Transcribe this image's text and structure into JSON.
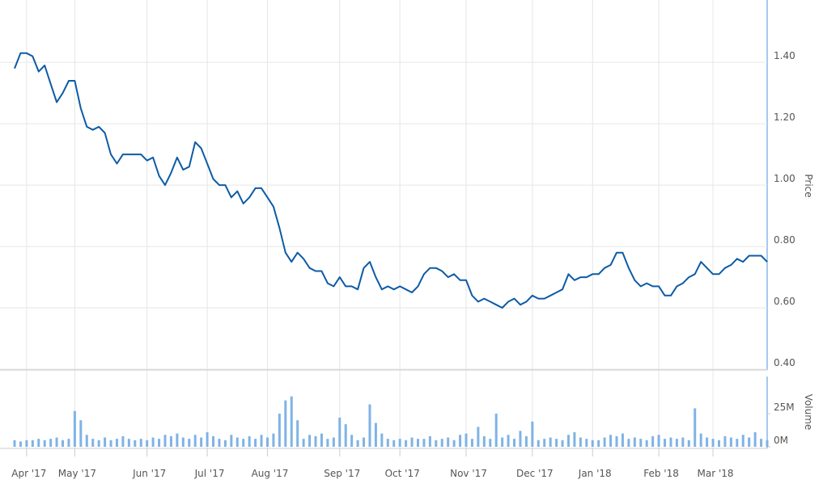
{
  "chart_data": [
    {
      "type": "line",
      "y_label": "Price",
      "color": "#0d5ba6",
      "grid": true,
      "categories": [
        null,
        null,
        "Apr '17",
        null,
        null,
        null,
        null,
        null,
        null,
        null,
        "May '17",
        null,
        null,
        null,
        null,
        null,
        null,
        null,
        null,
        null,
        null,
        null,
        "Jun '17",
        null,
        null,
        null,
        null,
        null,
        null,
        null,
        null,
        null,
        "Jul '17",
        null,
        null,
        null,
        null,
        null,
        null,
        null,
        null,
        null,
        "Aug '17",
        null,
        null,
        null,
        null,
        null,
        null,
        null,
        null,
        null,
        null,
        null,
        "Sep '17",
        null,
        null,
        null,
        null,
        null,
        null,
        null,
        null,
        null,
        "Oct '17",
        null,
        null,
        null,
        null,
        null,
        null,
        null,
        null,
        null,
        null,
        "Nov '17",
        null,
        null,
        null,
        null,
        null,
        null,
        null,
        null,
        null,
        null,
        "Dec '17",
        null,
        null,
        null,
        null,
        null,
        null,
        null,
        null,
        null,
        "Jan '18",
        null,
        null,
        null,
        null,
        null,
        null,
        null,
        null,
        null,
        null,
        "Feb '18",
        null,
        null,
        null,
        null,
        null,
        null,
        null,
        null,
        "Mar '18",
        null,
        null,
        null,
        null,
        null,
        null,
        null,
        null,
        null
      ],
      "values": [
        1.38,
        1.43,
        1.43,
        1.42,
        1.37,
        1.39,
        1.33,
        1.27,
        1.3,
        1.34,
        1.34,
        1.25,
        1.19,
        1.18,
        1.19,
        1.17,
        1.1,
        1.07,
        1.1,
        1.1,
        1.1,
        1.1,
        1.08,
        1.09,
        1.03,
        1.0,
        1.04,
        1.09,
        1.05,
        1.06,
        1.14,
        1.12,
        1.07,
        1.02,
        1.0,
        1.0,
        0.96,
        0.98,
        0.94,
        0.96,
        0.99,
        0.99,
        0.96,
        0.93,
        0.86,
        0.78,
        0.75,
        0.78,
        0.76,
        0.73,
        0.72,
        0.72,
        0.68,
        0.67,
        0.7,
        0.67,
        0.67,
        0.66,
        0.73,
        0.75,
        0.7,
        0.66,
        0.67,
        0.66,
        0.67,
        0.66,
        0.65,
        0.67,
        0.71,
        0.73,
        0.73,
        0.72,
        0.7,
        0.71,
        0.69,
        0.69,
        0.64,
        0.62,
        0.63,
        0.62,
        0.61,
        0.6,
        0.62,
        0.63,
        0.61,
        0.62,
        0.64,
        0.63,
        0.63,
        0.64,
        0.65,
        0.66,
        0.71,
        0.69,
        0.7,
        0.7,
        0.71,
        0.71,
        0.73,
        0.74,
        0.78,
        0.78,
        0.73,
        0.69,
        0.67,
        0.68,
        0.67,
        0.67,
        0.64,
        0.64,
        0.67,
        0.68,
        0.7,
        0.71,
        0.75,
        0.73,
        0.71,
        0.71,
        0.73,
        0.74,
        0.76,
        0.75,
        0.77,
        0.77,
        0.77,
        0.75
      ],
      "ylim": [
        0.4,
        1.59
      ],
      "yticks": [
        {
          "value": 0.4,
          "label": "0.40"
        },
        {
          "value": 0.6,
          "label": "0.60"
        },
        {
          "value": 0.8,
          "label": "0.80"
        },
        {
          "value": 1.0,
          "label": "1.00"
        },
        {
          "value": 1.2,
          "label": "1.20"
        },
        {
          "value": 1.4,
          "label": "1.40"
        }
      ]
    },
    {
      "type": "bar",
      "y_label": "Volume",
      "color": "#7fb3e6",
      "values": [
        5000000,
        4000000,
        5000000,
        5000000,
        6000000,
        5000000,
        6000000,
        7000000,
        5000000,
        6000000,
        27000000,
        20000000,
        9000000,
        6000000,
        5000000,
        7000000,
        5000000,
        6000000,
        8000000,
        6000000,
        5000000,
        6000000,
        5000000,
        7000000,
        6000000,
        9000000,
        8000000,
        10000000,
        7000000,
        6000000,
        9000000,
        7000000,
        11000000,
        8000000,
        6000000,
        5000000,
        9000000,
        7000000,
        6000000,
        8000000,
        6000000,
        9000000,
        7000000,
        10000000,
        25000000,
        35000000,
        38000000,
        20000000,
        6000000,
        9000000,
        8000000,
        10000000,
        6000000,
        7000000,
        22000000,
        17000000,
        9000000,
        5000000,
        7000000,
        32000000,
        18000000,
        10000000,
        6000000,
        5000000,
        6000000,
        5000000,
        7000000,
        6000000,
        6000000,
        8000000,
        5000000,
        6000000,
        7000000,
        5000000,
        9000000,
        10000000,
        6000000,
        15000000,
        8000000,
        6000000,
        25000000,
        7000000,
        9000000,
        6000000,
        12000000,
        8000000,
        19000000,
        5000000,
        6000000,
        7000000,
        6000000,
        5000000,
        9000000,
        11000000,
        7000000,
        6000000,
        5000000,
        5000000,
        7000000,
        9000000,
        8000000,
        10000000,
        6000000,
        7000000,
        6000000,
        5000000,
        8000000,
        9000000,
        6000000,
        7000000,
        6000000,
        7000000,
        5000000,
        29000000,
        10000000,
        7000000,
        6000000,
        5000000,
        8000000,
        7000000,
        6000000,
        9000000,
        7000000,
        11000000,
        6000000,
        5000000
      ],
      "ylim": [
        0,
        53000000
      ],
      "yticks": [
        {
          "value": 0,
          "label": "0M"
        },
        {
          "value": 25000000,
          "label": "25M"
        }
      ]
    }
  ]
}
